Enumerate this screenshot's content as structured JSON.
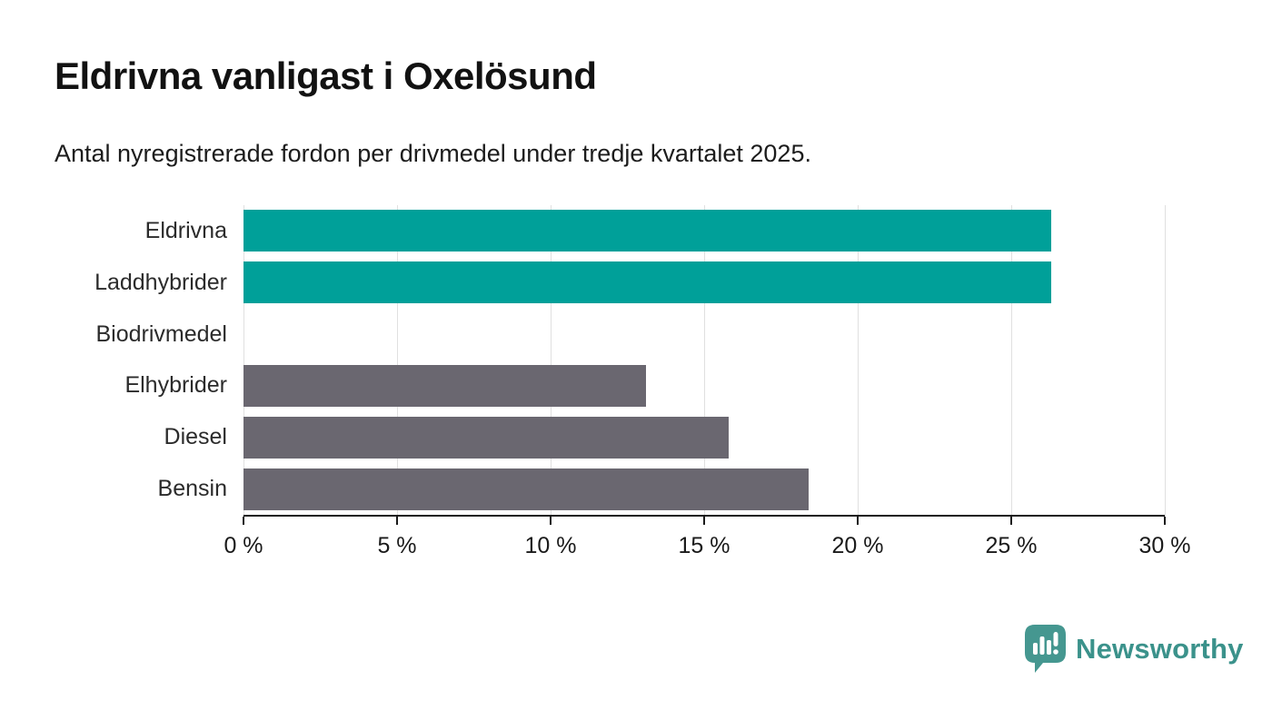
{
  "header": {
    "title": "Eldrivna vanligast i Oxelösund",
    "subtitle": "Antal nyregistrerade fordon per drivmedel under tredje kvartalet 2025."
  },
  "chart_data": {
    "type": "bar",
    "orientation": "horizontal",
    "title": "Eldrivna vanligast i Oxelösund",
    "subtitle": "Antal nyregistrerade fordon per drivmedel under tredje kvartalet 2025.",
    "categories": [
      "Eldrivna",
      "Laddhybrider",
      "Biodrivmedel",
      "Elhybrider",
      "Diesel",
      "Bensin"
    ],
    "values": [
      26.3,
      26.3,
      0,
      13.1,
      15.8,
      18.4
    ],
    "unit": "%",
    "xlim": [
      0,
      30
    ],
    "x_ticks": [
      0,
      5,
      10,
      15,
      20,
      25,
      30
    ],
    "x_tick_labels": [
      "0 %",
      "5 %",
      "10 %",
      "15 %",
      "20 %",
      "25 %",
      "30 %"
    ],
    "grid": "vertical",
    "legend": "none",
    "bar_colors": [
      "#00a099",
      "#00a099",
      "#6a6770",
      "#6a6770",
      "#6a6770",
      "#6a6770"
    ],
    "highlight_color": "#00a099",
    "default_color": "#6a6770",
    "gridline_color": "#e0e0e0",
    "axis_color": "#1a1a1a"
  },
  "footer": {
    "logo_text": "Newsworthy",
    "logo_color": "#3b928b",
    "logo_mark_color": "#459790"
  }
}
